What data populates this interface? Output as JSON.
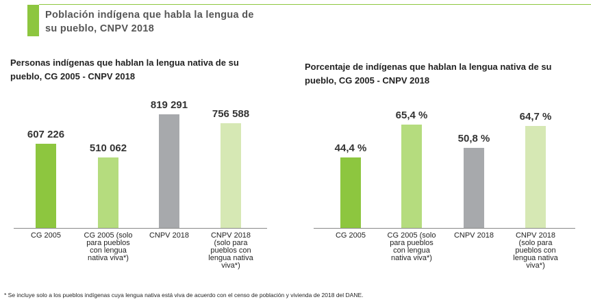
{
  "header": {
    "title": "Población indígena que habla la lengua de su pueblo, CNPV 2018"
  },
  "footnote": "* Se incluye solo a los pueblos indígenas cuya lengua nativa está viva de acuerdo con el censo de población y vivienda de 2018 del DANE.",
  "chart_data": [
    {
      "type": "bar",
      "title": "Personas indígenas que hablan la lengua nativa de su pueblo, CG 2005 - CNPV 2018",
      "categories": [
        "CG 2005",
        "CG 2005 (solo para pueblos con lengua nativa viva*)",
        "CNPV 2018",
        "CNPV 2018 (solo para pueblos con lengua nativa viva*)"
      ],
      "values": [
        607226,
        510062,
        819291,
        756588
      ],
      "value_labels": [
        "607 226",
        "510 062",
        "819 291",
        "756 588"
      ],
      "colors": [
        "#8dc63f",
        "#b5dc7e",
        "#a7a9ac",
        "#d6e8b4"
      ]
    },
    {
      "type": "bar",
      "title": "Porcentaje de indígenas que hablan la lengua nativa de su pueblo, CG 2005 - CNPV 2018",
      "categories": [
        "CG 2005",
        "CG 2005 (solo para pueblos con lengua nativa viva*)",
        "CNPV 2018",
        "CNPV 2018 (solo para pueblos con lengua nativa viva*)"
      ],
      "values": [
        44.4,
        65.4,
        50.8,
        64.7
      ],
      "value_labels": [
        "44,4 %",
        "65,4 %",
        "50,8 %",
        "64,7 %"
      ],
      "colors": [
        "#8dc63f",
        "#b5dc7e",
        "#a7a9ac",
        "#d6e8b4"
      ]
    }
  ]
}
